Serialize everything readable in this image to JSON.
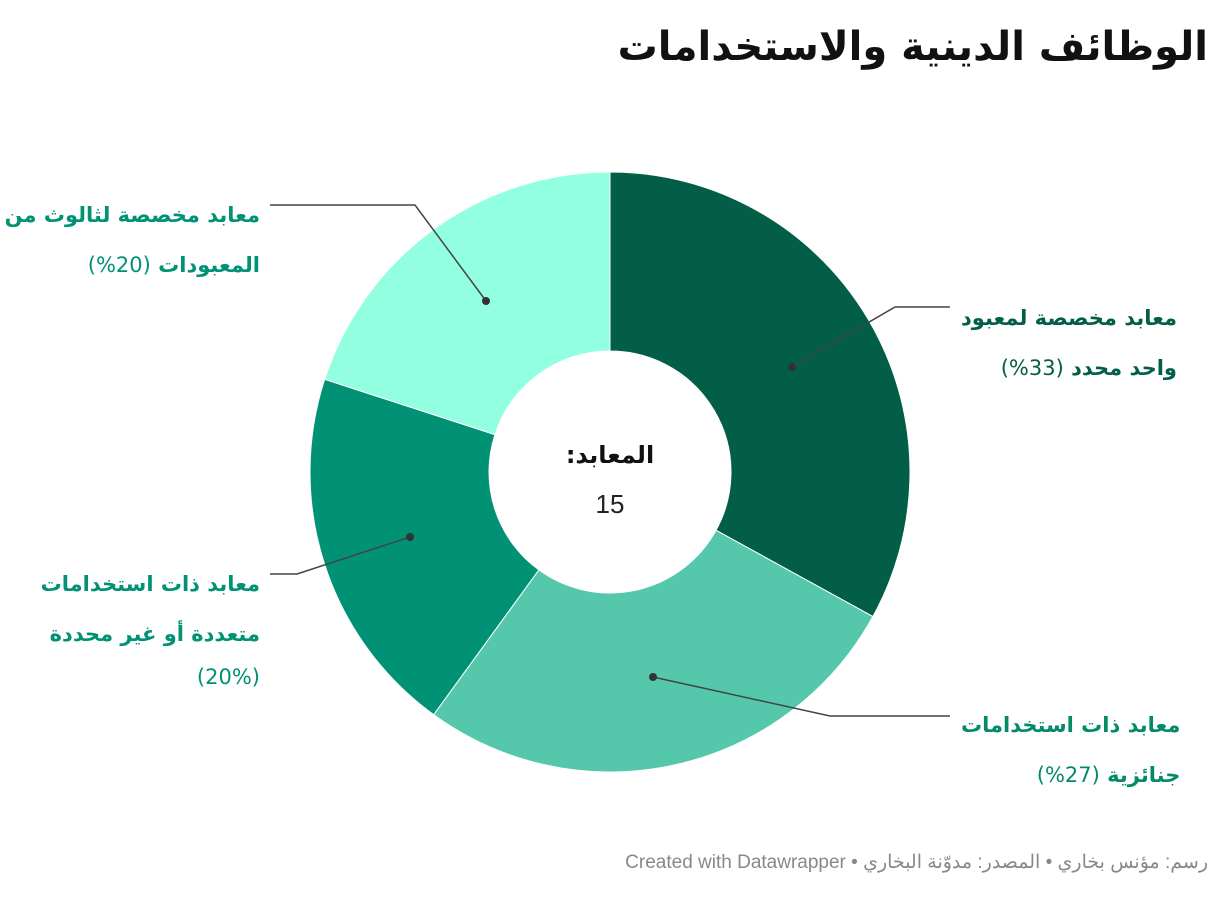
{
  "title": "الوظائف الدينية والاستخدامات",
  "footer": "رسم: مؤنس بخاري • المصدر: مدوّنة البخاري • Created with Datawrapper",
  "chart_data": {
    "type": "donut",
    "center_label": "المعابد:",
    "center_value": "15",
    "series": [
      {
        "label": "معابد مخصصة لمعبود واحد محدد",
        "line1": "معابد مخصصة لمعبود",
        "line2": "واحد محدد",
        "line3": "",
        "pct_label": "(33%)",
        "value": 33,
        "color": "#035e48",
        "text_color": "#035e48"
      },
      {
        "label": "معابد ذات استخدامات جنائزية",
        "line1": "معابد ذات استخدامات",
        "line2": "جنائزية",
        "line3": "",
        "pct_label": "(27%)",
        "value": 27,
        "color": "#55c8ab",
        "text_color": "#048a68"
      },
      {
        "label": "معابد ذات استخدامات متعددة أو غير محددة",
        "line1": "معابد ذات استخدامات",
        "line2": "متعددة أو غير محددة",
        "line3": "(20%)",
        "pct_label": "",
        "value": 20,
        "color": "#019275",
        "text_color": "#019275"
      },
      {
        "label": "معابد مخصصة لثالوث من المعبودات",
        "line1": "معابد مخصصة لثالوث من",
        "line2": "المعبودات",
        "line3": "",
        "pct_label": "(20%)",
        "value": 20,
        "color": "#92ffe0",
        "text_color": "#019275"
      }
    ]
  }
}
